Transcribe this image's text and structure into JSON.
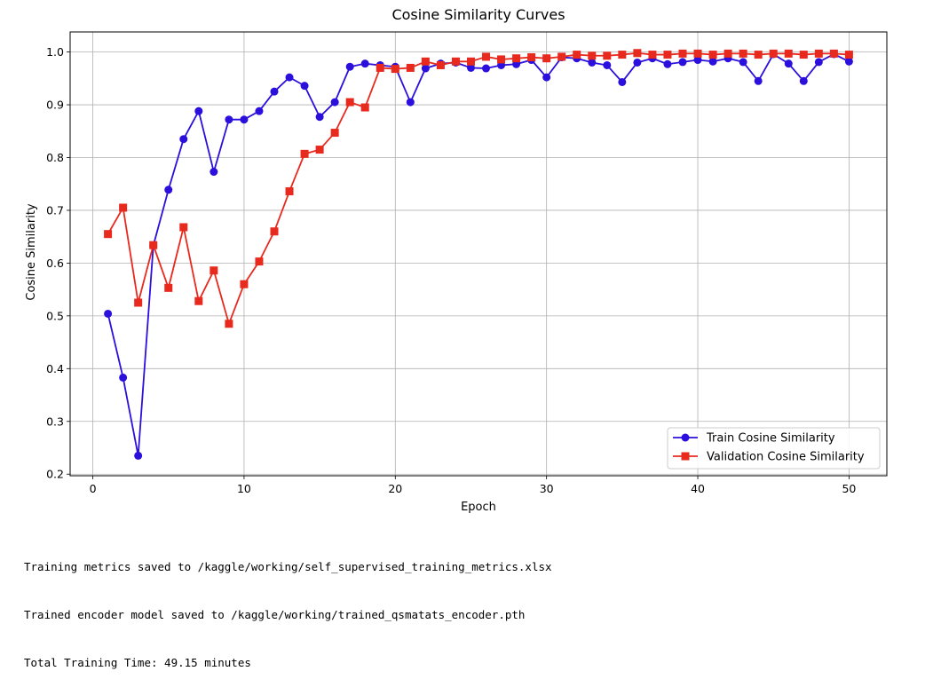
{
  "chart_data": {
    "type": "line",
    "title": "Cosine Similarity Curves",
    "xlabel": "Epoch",
    "ylabel": "Cosine Similarity",
    "xlim": [
      -1.5,
      52.5
    ],
    "ylim": [
      0.197,
      1.038
    ],
    "xticks": [
      0,
      10,
      20,
      30,
      40,
      50
    ],
    "yticks": [
      0.2,
      0.3,
      0.4,
      0.5,
      0.6,
      0.7,
      0.8,
      0.9,
      1.0
    ],
    "xtick_labels": [
      "0",
      "10",
      "20",
      "30",
      "40",
      "50"
    ],
    "ytick_labels": [
      "0.2",
      "0.3",
      "0.4",
      "0.5",
      "0.6",
      "0.7",
      "0.8",
      "0.9",
      "1.0"
    ],
    "grid": true,
    "legend_position": "lower-right",
    "x": [
      1,
      2,
      3,
      4,
      5,
      6,
      7,
      8,
      9,
      10,
      11,
      12,
      13,
      14,
      15,
      16,
      17,
      18,
      19,
      20,
      21,
      22,
      23,
      24,
      25,
      26,
      27,
      28,
      29,
      30,
      31,
      32,
      33,
      34,
      35,
      36,
      37,
      38,
      39,
      40,
      41,
      42,
      43,
      44,
      45,
      46,
      47,
      48,
      49,
      50
    ],
    "series": [
      {
        "name": "Train Cosine Similarity",
        "color": "#2b0fdc",
        "marker": "circle",
        "values": [
          0.504,
          0.383,
          0.235,
          0.633,
          0.739,
          0.835,
          0.888,
          0.773,
          0.872,
          0.872,
          0.888,
          0.925,
          0.952,
          0.936,
          0.877,
          0.905,
          0.972,
          0.978,
          0.975,
          0.972,
          0.905,
          0.969,
          0.978,
          0.98,
          0.97,
          0.969,
          0.975,
          0.977,
          0.985,
          0.952,
          0.99,
          0.988,
          0.98,
          0.975,
          0.943,
          0.98,
          0.988,
          0.977,
          0.981,
          0.985,
          0.982,
          0.988,
          0.981,
          0.945,
          0.996,
          0.978,
          0.945,
          0.981,
          0.996,
          0.982
        ]
      },
      {
        "name": "Validation Cosine Similarity",
        "color": "#e8291d",
        "marker": "square",
        "values": [
          0.655,
          0.705,
          0.525,
          0.634,
          0.553,
          0.668,
          0.528,
          0.586,
          0.485,
          0.56,
          0.603,
          0.66,
          0.736,
          0.807,
          0.815,
          0.847,
          0.905,
          0.895,
          0.97,
          0.968,
          0.97,
          0.982,
          0.975,
          0.982,
          0.982,
          0.991,
          0.986,
          0.988,
          0.99,
          0.988,
          0.991,
          0.995,
          0.993,
          0.993,
          0.995,
          0.998,
          0.995,
          0.995,
          0.997,
          0.997,
          0.995,
          0.997,
          0.997,
          0.995,
          0.997,
          0.997,
          0.995,
          0.997,
          0.997,
          0.995
        ]
      }
    ]
  },
  "output": {
    "line1": "Training metrics saved to /kaggle/working/self_supervised_training_metrics.xlsx",
    "line2": "Trained encoder model saved to /kaggle/working/trained_qsmatats_encoder.pth",
    "line3": "Total Training Time: 49.15 minutes"
  }
}
